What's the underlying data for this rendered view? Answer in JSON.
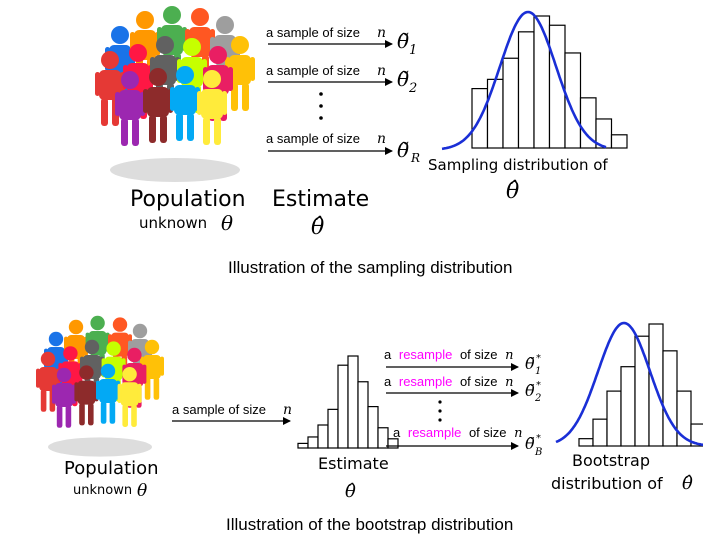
{
  "top": {
    "population_label": "Population",
    "unknown_label": "unknown",
    "estimate_label": "Estimate",
    "arrow_sample_text": "a sample of size",
    "n_symbol": "n",
    "theta_symbol": "θ",
    "theta_hat_symbol": "θ̂",
    "theta_tilde_symbol": "θ̃",
    "sub_1": "1",
    "sub_2": "2",
    "sub_R": "R",
    "dots": "⋮",
    "sampling_dist_label": "Sampling distribution of",
    "caption": "Illustration of the sampling distribution"
  },
  "bottom": {
    "population_label": "Population",
    "unknown_label": "unknown",
    "estimate_label": "Estimate",
    "arrow_sample_text": "a sample of size",
    "prefix_a": "a",
    "resample_word": "resample",
    "of_size_text": "of size",
    "n_symbol": "n",
    "theta_symbol": "θ",
    "theta_hat_symbol": "θ̂",
    "theta_tilde_symbol": "θ̃",
    "star": "*",
    "sub_1": "1",
    "sub_2": "2",
    "sub_B": "B",
    "dots": "⋮",
    "bootstrap_label_1": "Bootstrap",
    "bootstrap_label_2": "distribution of",
    "caption": "Illustration of the bootstrap distribution"
  },
  "colors": {
    "resample": "#ff00ff",
    "curve": "#1a2fd6",
    "ink": "#000000",
    "people": [
      "#1a73e8",
      "#ff9800",
      "#4caf50",
      "#ff5722",
      "#9e9e9e",
      "#ffc107",
      "#e53935",
      "#ff1744",
      "#616161",
      "#c6ff00",
      "#e91e63",
      "#9c27b0",
      "#8d2b2b",
      "#03a9f4",
      "#ffeb3b"
    ]
  }
}
